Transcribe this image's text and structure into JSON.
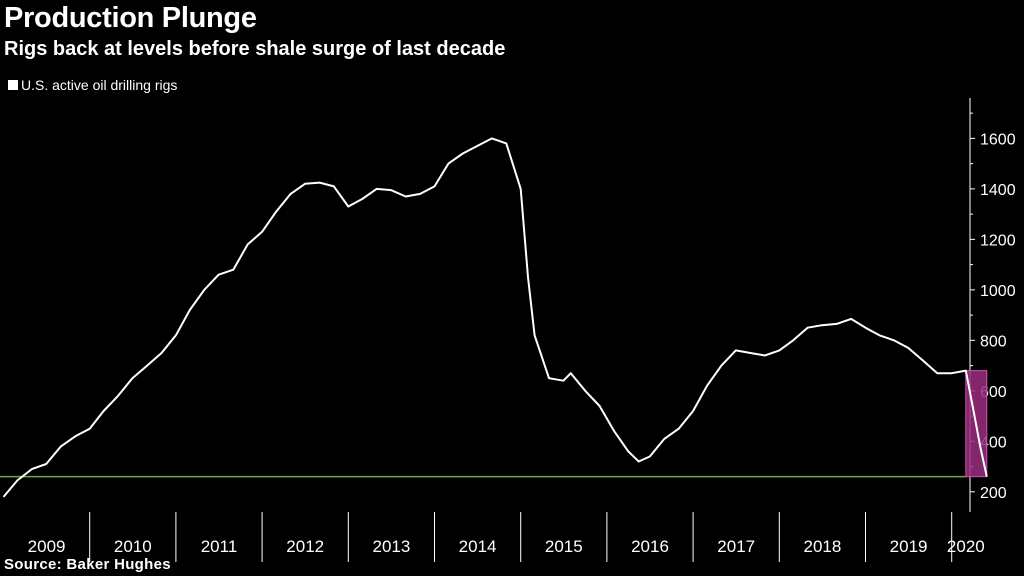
{
  "title": "Production Plunge",
  "subtitle": "Rigs back at levels before shale surge of last decade",
  "source": "Source: Baker Hughes",
  "colors": {
    "line": "#ffffff",
    "reference_line": "#6ea842",
    "highlight": "#9b2d7f",
    "background": "#000000"
  },
  "chart_data": {
    "type": "line",
    "x_axis": {
      "type": "date",
      "range": [
        "2009-01-01",
        "2020-07-01"
      ],
      "tick_labels": [
        "2009",
        "2010",
        "2011",
        "2012",
        "2013",
        "2014",
        "2015",
        "2016",
        "2017",
        "2018",
        "2019",
        "2020"
      ]
    },
    "y_axis": {
      "position": "right",
      "range": [
        120,
        1760
      ],
      "ticks": [
        200,
        400,
        600,
        800,
        1000,
        1200,
        1400,
        1600
      ]
    },
    "grid": false,
    "legend": {
      "placement": "top-left"
    },
    "series": [
      {
        "name": "U.S. active oil drilling rigs",
        "points": [
          [
            "2009-01-01",
            180
          ],
          [
            "2009-03-01",
            245
          ],
          [
            "2009-05-01",
            290
          ],
          [
            "2009-07-01",
            310
          ],
          [
            "2009-09-01",
            380
          ],
          [
            "2009-11-01",
            420
          ],
          [
            "2010-01-01",
            450
          ],
          [
            "2010-03-01",
            520
          ],
          [
            "2010-05-01",
            580
          ],
          [
            "2010-07-01",
            650
          ],
          [
            "2010-09-01",
            700
          ],
          [
            "2010-11-01",
            750
          ],
          [
            "2011-01-01",
            820
          ],
          [
            "2011-03-01",
            920
          ],
          [
            "2011-05-01",
            1000
          ],
          [
            "2011-07-01",
            1060
          ],
          [
            "2011-09-01",
            1080
          ],
          [
            "2011-11-01",
            1180
          ],
          [
            "2012-01-01",
            1230
          ],
          [
            "2012-03-01",
            1310
          ],
          [
            "2012-05-01",
            1380
          ],
          [
            "2012-07-01",
            1420
          ],
          [
            "2012-09-01",
            1425
          ],
          [
            "2012-11-01",
            1410
          ],
          [
            "2013-01-01",
            1330
          ],
          [
            "2013-03-01",
            1360
          ],
          [
            "2013-05-01",
            1400
          ],
          [
            "2013-07-01",
            1395
          ],
          [
            "2013-09-01",
            1370
          ],
          [
            "2013-11-01",
            1380
          ],
          [
            "2014-01-01",
            1410
          ],
          [
            "2014-03-01",
            1500
          ],
          [
            "2014-05-01",
            1540
          ],
          [
            "2014-07-01",
            1570
          ],
          [
            "2014-09-01",
            1600
          ],
          [
            "2014-11-01",
            1580
          ],
          [
            "2015-01-01",
            1400
          ],
          [
            "2015-02-01",
            1050
          ],
          [
            "2015-03-01",
            820
          ],
          [
            "2015-05-01",
            650
          ],
          [
            "2015-07-01",
            640
          ],
          [
            "2015-08-01",
            670
          ],
          [
            "2015-10-01",
            600
          ],
          [
            "2015-12-01",
            540
          ],
          [
            "2016-02-01",
            440
          ],
          [
            "2016-04-01",
            360
          ],
          [
            "2016-05-15",
            320
          ],
          [
            "2016-07-01",
            340
          ],
          [
            "2016-09-01",
            410
          ],
          [
            "2016-11-01",
            450
          ],
          [
            "2017-01-01",
            520
          ],
          [
            "2017-03-01",
            620
          ],
          [
            "2017-05-01",
            700
          ],
          [
            "2017-07-01",
            760
          ],
          [
            "2017-09-01",
            750
          ],
          [
            "2017-11-01",
            740
          ],
          [
            "2018-01-01",
            760
          ],
          [
            "2018-03-01",
            800
          ],
          [
            "2018-05-01",
            850
          ],
          [
            "2018-07-01",
            860
          ],
          [
            "2018-09-01",
            865
          ],
          [
            "2018-11-01",
            885
          ],
          [
            "2019-01-01",
            850
          ],
          [
            "2019-03-01",
            820
          ],
          [
            "2019-05-01",
            800
          ],
          [
            "2019-07-01",
            770
          ],
          [
            "2019-09-01",
            720
          ],
          [
            "2019-11-01",
            670
          ],
          [
            "2020-01-01",
            670
          ],
          [
            "2020-03-01",
            680
          ],
          [
            "2020-04-01",
            530
          ],
          [
            "2020-05-01",
            380
          ],
          [
            "2020-05-29",
            260
          ]
        ]
      }
    ],
    "annotations": [
      {
        "type": "horizontal_line",
        "y": 260,
        "color": "#6ea842"
      },
      {
        "type": "highlight_box",
        "x_range": [
          "2020-03-01",
          "2020-05-29"
        ],
        "y_range": [
          260,
          680
        ],
        "color": "#9b2d7f"
      }
    ]
  }
}
